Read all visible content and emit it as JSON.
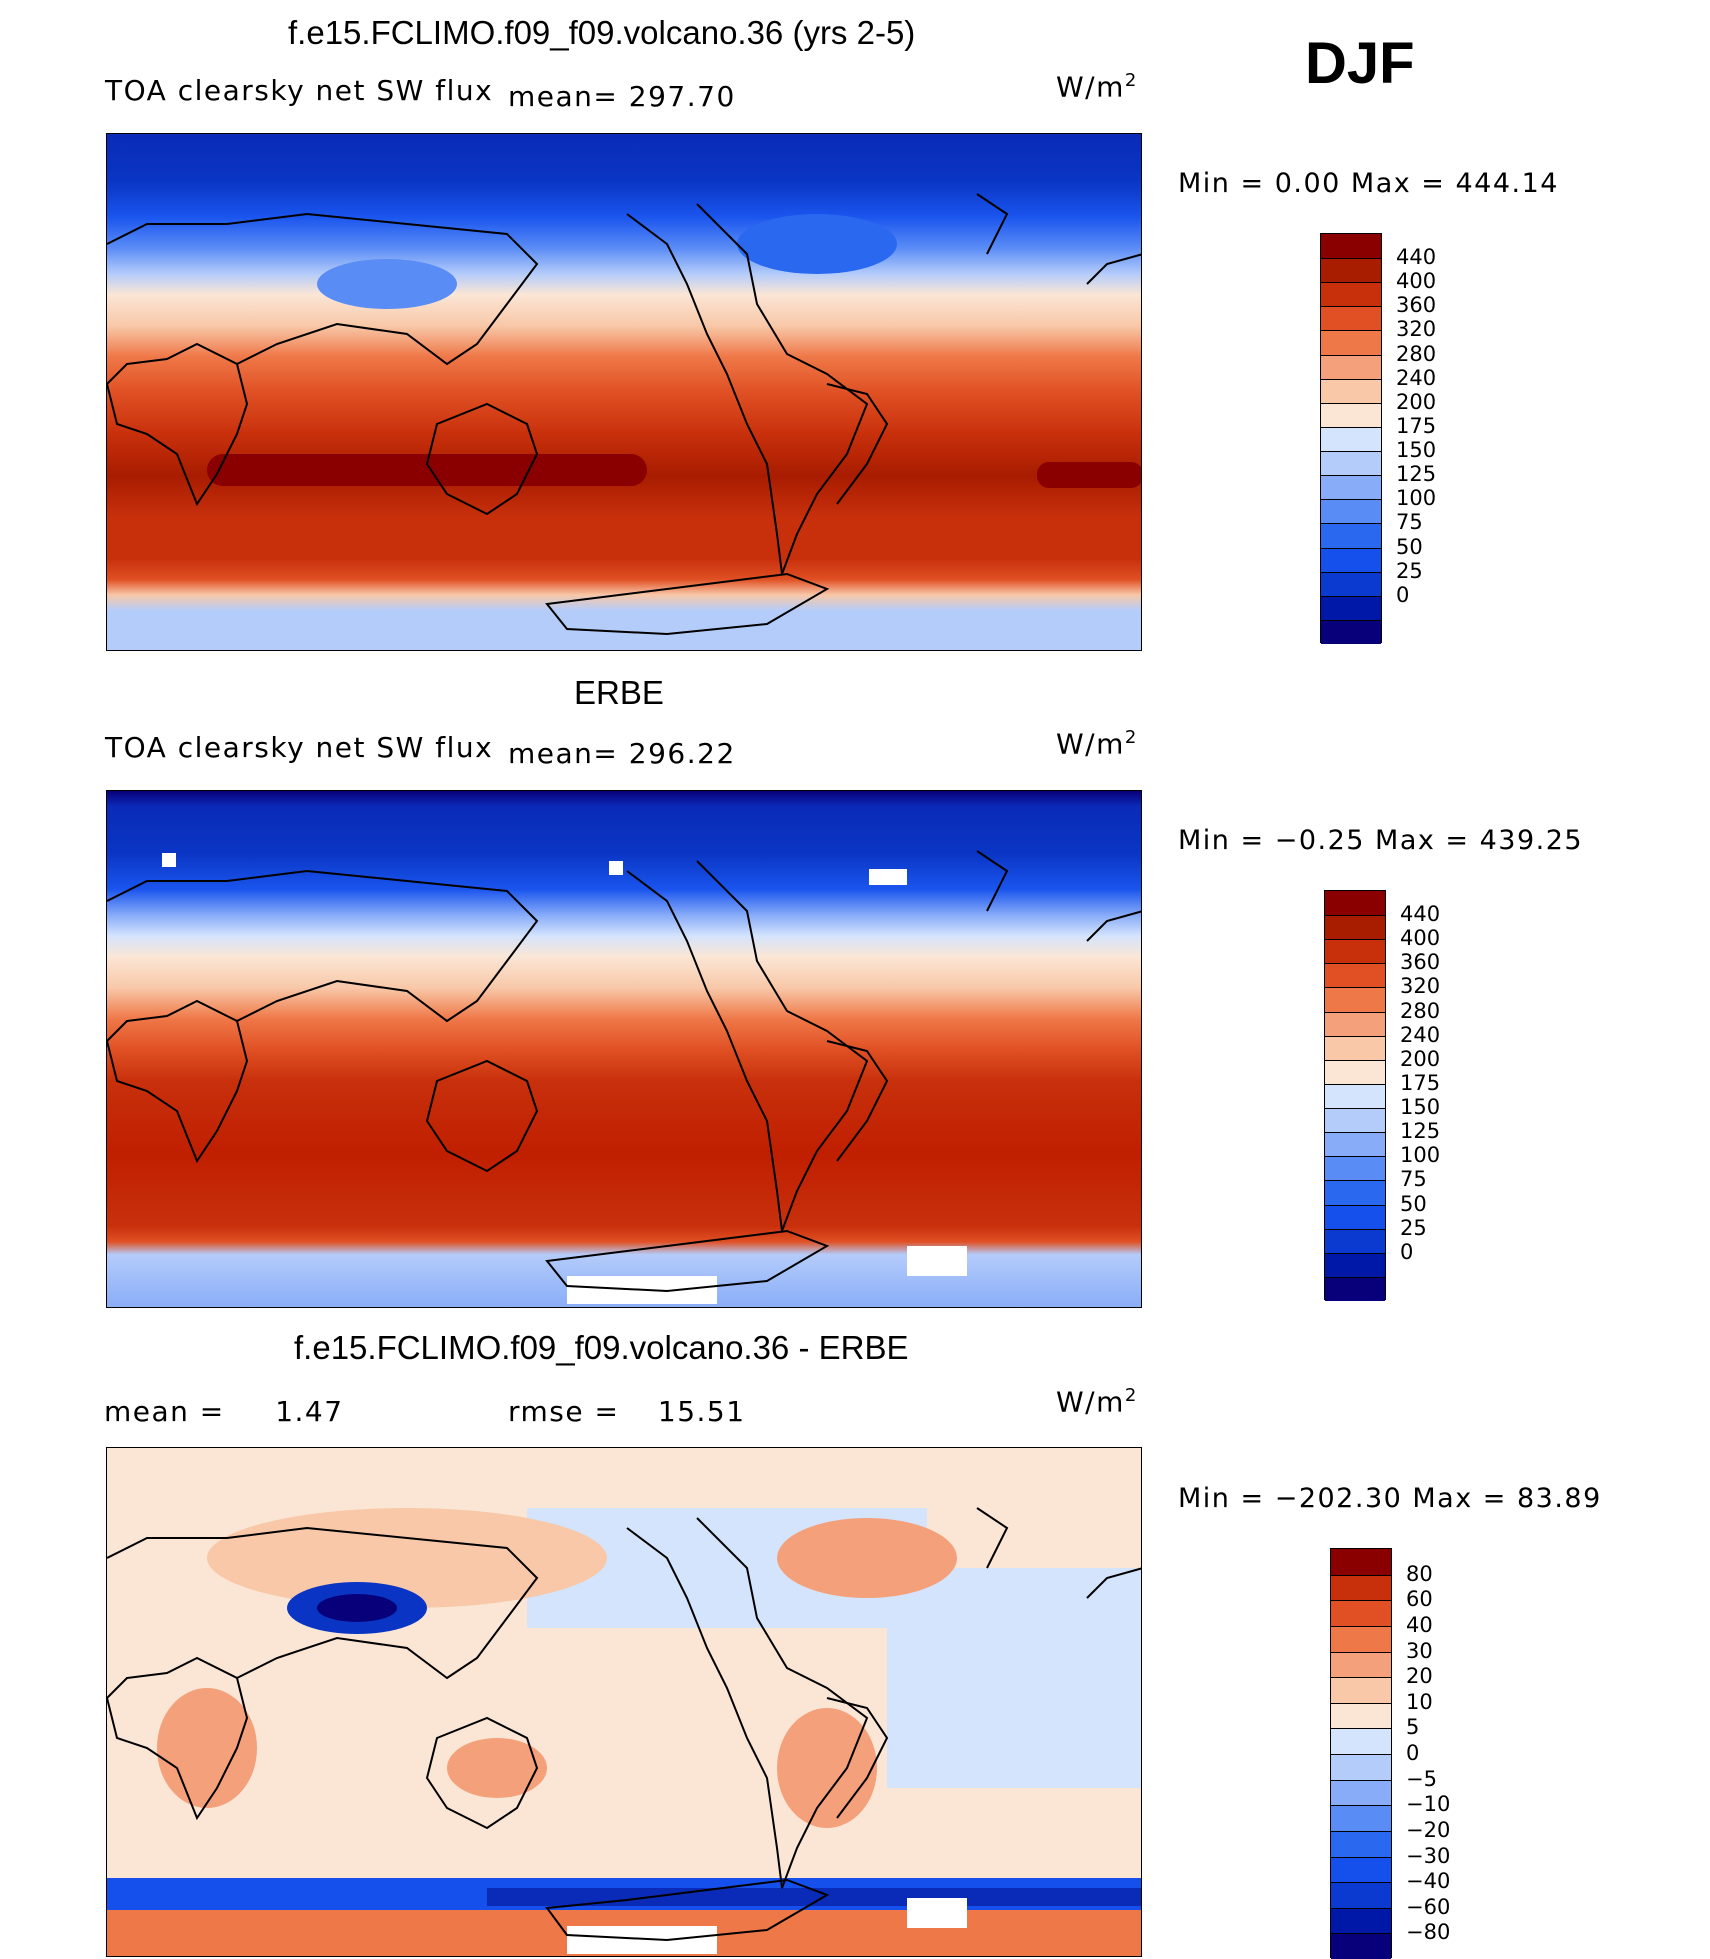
{
  "season": "DJF",
  "units": "W/m²",
  "colors": {
    "abs_scale": [
      "#08007a",
      "#0018a8",
      "#0a3ad0",
      "#1650ec",
      "#2a68f0",
      "#5a8cf6",
      "#88acf8",
      "#b4ccfa",
      "#d4e4fc",
      "#fbe6d6",
      "#f8c8a8",
      "#f4a07a",
      "#ef7848",
      "#e05024",
      "#c8300c",
      "#a81c00",
      "#8a0000"
    ],
    "diff_scale": [
      "#08007a",
      "#0018a8",
      "#0a3ad0",
      "#1650ec",
      "#2a68f0",
      "#5a8cf6",
      "#88acf8",
      "#b4ccfa",
      "#d4e4fc",
      "#fbe6d6",
      "#f8c8a8",
      "#f4a07a",
      "#ef7848",
      "#e05024",
      "#c8300c",
      "#8a0000"
    ]
  },
  "panels": [
    {
      "title": "f.e15.FCLIMO.f09_f09.volcano.36 (yrs 2-5)",
      "variable": "TOA clearsky net SW flux",
      "mean_label": "mean=",
      "mean_value": "297.70",
      "units": "W/m",
      "units_sup": "2",
      "minmax": "Min =    0.00  Max  =  444.14",
      "ticks": [
        "440",
        "400",
        "360",
        "320",
        "280",
        "240",
        "200",
        "175",
        "150",
        "125",
        "100",
        "75",
        "50",
        "25",
        "0"
      ]
    },
    {
      "title": "ERBE",
      "variable": "TOA clearsky net SW flux",
      "mean_label": "mean=",
      "mean_value": "296.22",
      "units": "W/m",
      "units_sup": "2",
      "minmax": "Min =   −0.25  Max  =  439.25",
      "ticks": [
        "440",
        "400",
        "360",
        "320",
        "280",
        "240",
        "200",
        "175",
        "150",
        "125",
        "100",
        "75",
        "50",
        "25",
        "0"
      ]
    },
    {
      "title": "f.e15.FCLIMO.f09_f09.volcano.36 - ERBE",
      "mean_label": "mean  =",
      "mean_value": "1.47",
      "rmse_label": "rmse  =",
      "rmse_value": "15.51",
      "units": "W/m",
      "units_sup": "2",
      "minmax": "Min  =  −202.30  Max  =    83.89",
      "ticks": [
        "80",
        "60",
        "40",
        "30",
        "20",
        "10",
        "5",
        "0",
        "−5",
        "−10",
        "−20",
        "−30",
        "−40",
        "−60",
        "−80"
      ]
    }
  ]
}
